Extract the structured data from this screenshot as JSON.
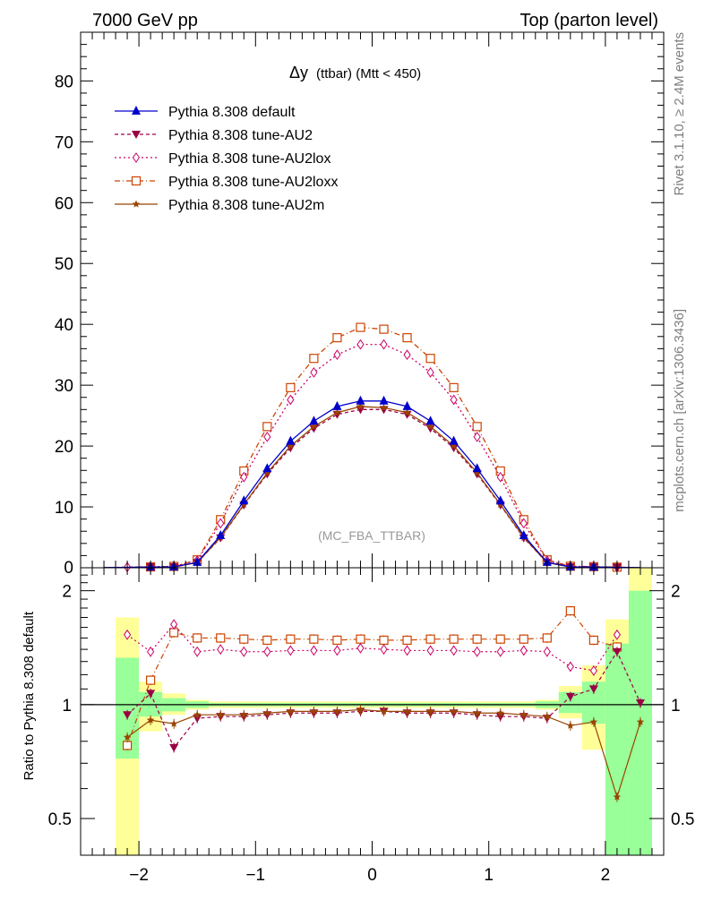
{
  "header": {
    "left": "7000 GeV pp",
    "right": "Top (parton level)"
  },
  "side": {
    "rivet": "Rivet 3.1.10, ≥ 2.4M events",
    "mcplots": "mcplots.cern.ch [arXiv:1306.3436]"
  },
  "chart_data": {
    "type": "line",
    "title_main": "Δy",
    "title_rest": "(ttbar) (Mtt < 450)",
    "watermark": "(MC_FBA_TTBAR)",
    "xlabel": "",
    "ylabel": "",
    "ratio_ylabel": "Ratio to Pythia 8.308 default",
    "xlim": [
      -2.5,
      2.5
    ],
    "ylim": [
      0,
      88
    ],
    "ratio_ylim": [
      0.4,
      2.3
    ],
    "x_ticks": [
      -2,
      -1,
      0,
      1,
      2
    ],
    "x_tick_labels": [
      "−2",
      "−1",
      "0",
      "1",
      "2"
    ],
    "y_ticks": [
      10,
      20,
      30,
      40,
      50,
      60,
      70,
      80
    ],
    "y_tick_labels": [
      "10",
      "20",
      "30",
      "40",
      "50",
      "60",
      "70",
      "80"
    ],
    "y0_label": "0",
    "ratio_ticks": [
      0.5,
      1,
      2
    ],
    "ratio_tick_labels": [
      "0.5",
      "1",
      "2"
    ],
    "x": [
      -2.3,
      -2.1,
      -1.9,
      -1.7,
      -1.5,
      -1.3,
      -1.1,
      -0.9,
      -0.7,
      -0.5,
      -0.3,
      -0.1,
      0.1,
      0.3,
      0.5,
      0.7,
      0.9,
      1.1,
      1.3,
      1.5,
      1.7,
      1.9,
      2.1,
      2.3
    ],
    "series": [
      {
        "name": "Pythia 8.308 default",
        "color": "#0000cc",
        "marker": "triangle-up",
        "dash": "",
        "values": [
          0.02,
          0.07,
          0.12,
          0.15,
          0.9,
          5.3,
          11.0,
          16.3,
          20.8,
          24.1,
          26.5,
          27.4,
          27.4,
          26.5,
          24.1,
          20.8,
          16.3,
          11.0,
          5.3,
          0.9,
          0.15,
          0.12,
          0.07,
          0.02
        ],
        "ratio": [
          1,
          1,
          1,
          1,
          1,
          1,
          1,
          1,
          1,
          1,
          1,
          1,
          1,
          1,
          1,
          1,
          1,
          1,
          1,
          1,
          1,
          1,
          1,
          1
        ]
      },
      {
        "name": "Pythia 8.308 tune-AU2",
        "color": "#990044",
        "marker": "triangle-down",
        "dash": "4,3",
        "values": [
          0.02,
          0.07,
          0.12,
          0.12,
          0.85,
          4.9,
          10.3,
          15.4,
          19.7,
          22.9,
          25.2,
          26.0,
          26.0,
          25.2,
          22.9,
          19.7,
          15.4,
          10.3,
          4.9,
          0.85,
          0.15,
          0.12,
          0.08,
          0.02
        ],
        "ratio": [
          null,
          0.94,
          1.07,
          0.77,
          0.92,
          0.93,
          0.93,
          0.94,
          0.95,
          0.95,
          0.95,
          0.96,
          0.96,
          0.95,
          0.95,
          0.95,
          0.94,
          0.93,
          0.93,
          0.92,
          1.05,
          1.1,
          1.38,
          1.01
        ]
      },
      {
        "name": "Pythia 8.308 tune-AU2lox",
        "color": "#cc0066",
        "marker": "diamond-open",
        "dash": "2,3",
        "values": [
          0.02,
          0.11,
          0.16,
          0.24,
          1.2,
          7.3,
          14.9,
          21.5,
          27.6,
          32.1,
          35.0,
          36.7,
          36.7,
          35.0,
          32.1,
          27.6,
          21.5,
          14.9,
          7.3,
          1.2,
          0.2,
          0.15,
          0.1,
          0.02
        ],
        "ratio": [
          null,
          1.53,
          1.38,
          1.63,
          1.38,
          1.4,
          1.38,
          1.38,
          1.39,
          1.39,
          1.39,
          1.41,
          1.4,
          1.39,
          1.39,
          1.39,
          1.38,
          1.38,
          1.39,
          1.38,
          1.26,
          1.23,
          1.53,
          null
        ]
      },
      {
        "name": "Pythia 8.308 tune-AU2loxx",
        "color": "#cc4400",
        "marker": "square-open",
        "dash": "6,3,1,3",
        "values": [
          0.02,
          0.06,
          0.14,
          0.22,
          1.3,
          7.9,
          15.9,
          23.2,
          29.6,
          34.4,
          37.8,
          39.5,
          39.2,
          37.8,
          34.4,
          29.6,
          23.2,
          15.9,
          7.9,
          1.3,
          0.25,
          0.18,
          0.1,
          0.02
        ],
        "ratio": [
          null,
          0.78,
          1.16,
          1.55,
          1.5,
          1.5,
          1.49,
          1.48,
          1.49,
          1.49,
          1.48,
          1.49,
          1.48,
          1.48,
          1.49,
          1.49,
          1.49,
          1.49,
          1.49,
          1.5,
          1.77,
          1.48,
          1.42,
          null
        ]
      },
      {
        "name": "Pythia 8.308 tune-AU2m",
        "color": "#994400",
        "marker": "star",
        "dash": "",
        "values": [
          0.02,
          0.06,
          0.11,
          0.13,
          0.85,
          5.0,
          10.4,
          15.6,
          20.0,
          23.2,
          25.5,
          26.5,
          26.3,
          25.5,
          23.2,
          20.0,
          15.6,
          10.4,
          5.0,
          0.85,
          0.13,
          0.11,
          0.04,
          0.02
        ],
        "ratio": [
          null,
          0.82,
          0.91,
          0.89,
          0.94,
          0.94,
          0.94,
          0.95,
          0.96,
          0.96,
          0.96,
          0.97,
          0.96,
          0.96,
          0.96,
          0.96,
          0.95,
          0.95,
          0.94,
          0.93,
          0.88,
          0.9,
          0.57,
          0.9
        ]
      }
    ],
    "error_bands": {
      "x_edges": [
        -2.4,
        -2.2,
        -2.0,
        -1.8,
        -1.6,
        -1.4,
        -1.2,
        -1.0,
        -0.8,
        -0.6,
        -0.4,
        -0.2,
        0.0,
        0.2,
        0.4,
        0.6,
        0.8,
        1.0,
        1.2,
        1.4,
        1.6,
        1.8,
        2.0,
        2.2,
        2.4
      ],
      "green_lo": [
        null,
        0.72,
        0.93,
        0.96,
        0.98,
        0.99,
        0.99,
        0.99,
        0.99,
        0.99,
        0.99,
        0.99,
        0.99,
        0.99,
        0.99,
        0.99,
        0.99,
        0.99,
        0.99,
        0.98,
        0.95,
        0.89,
        0.4,
        0.4
      ],
      "green_hi": [
        null,
        1.33,
        1.08,
        1.04,
        1.02,
        1.01,
        1.01,
        1.01,
        1.01,
        1.01,
        1.01,
        1.01,
        1.01,
        1.01,
        1.01,
        1.01,
        1.01,
        1.01,
        1.01,
        1.02,
        1.08,
        1.15,
        1.45,
        2.0
      ],
      "yellow_lo": [
        null,
        0.4,
        0.85,
        0.94,
        0.97,
        0.98,
        0.98,
        0.98,
        0.98,
        0.98,
        0.98,
        0.98,
        0.98,
        0.98,
        0.98,
        0.98,
        0.98,
        0.98,
        0.98,
        0.97,
        0.92,
        0.76,
        0.4,
        0.4
      ],
      "yellow_hi": [
        null,
        1.7,
        1.15,
        1.07,
        1.03,
        1.02,
        1.02,
        1.02,
        1.02,
        1.02,
        1.02,
        1.02,
        1.02,
        1.02,
        1.02,
        1.02,
        1.02,
        1.02,
        1.02,
        1.03,
        1.12,
        1.27,
        1.68,
        2.3
      ]
    }
  }
}
